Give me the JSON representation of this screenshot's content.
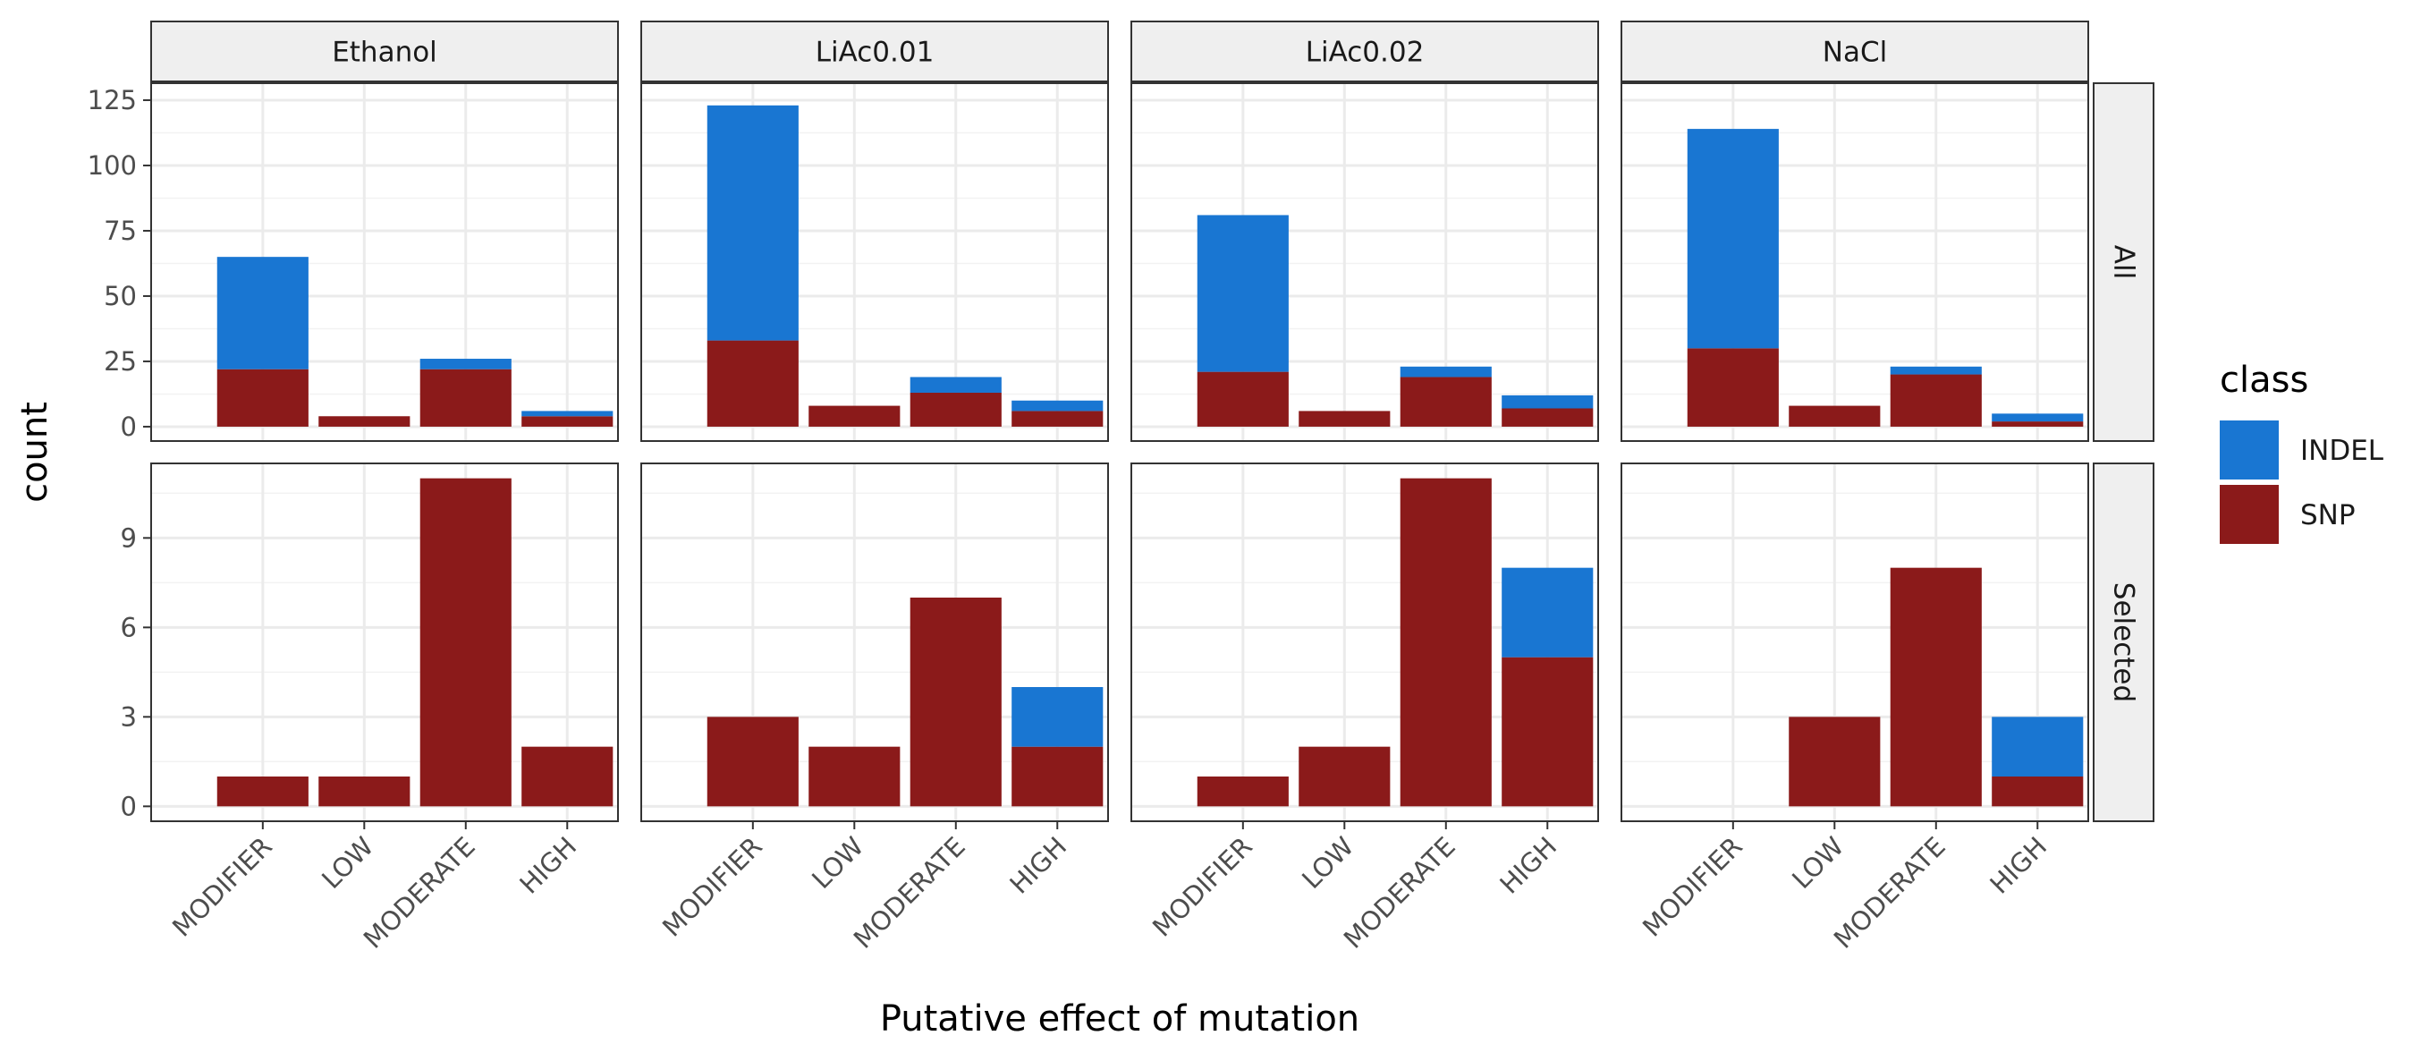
{
  "chart_data": {
    "type": "bar",
    "stacked": true,
    "faceted": true,
    "column_facets": [
      "Ethanol",
      "LiAc0.01",
      "LiAc0.02",
      "NaCl"
    ],
    "row_facets": [
      "All",
      "Selected"
    ],
    "categories": [
      "MODIFIER",
      "LOW",
      "MODERATE",
      "HIGH"
    ],
    "xlabel": "Putative effect of mutation",
    "ylabel": "count",
    "legend": {
      "title": "class",
      "position": "right",
      "entries": [
        {
          "name": "INDEL",
          "color": "#1976D2"
        },
        {
          "name": "SNP",
          "color": "#8B1A1A"
        }
      ]
    },
    "rows": [
      {
        "ylim": [
          -5.5,
          131.5
        ],
        "yticks": [
          0,
          25,
          50,
          75,
          100,
          125
        ],
        "panels": [
          {
            "SNP": [
              22,
              4,
              22,
              4
            ],
            "INDEL": [
              43,
              0,
              4,
              2
            ]
          },
          {
            "SNP": [
              33,
              8,
              13,
              6
            ],
            "INDEL": [
              90,
              0,
              6,
              4
            ]
          },
          {
            "SNP": [
              21,
              6,
              19,
              7
            ],
            "INDEL": [
              60,
              0,
              4,
              5
            ]
          },
          {
            "SNP": [
              30,
              8,
              20,
              2
            ],
            "INDEL": [
              84,
              0,
              3,
              3
            ]
          }
        ]
      },
      {
        "ylim": [
          -0.5,
          11.5
        ],
        "yticks": [
          0,
          3,
          6,
          9
        ],
        "panels": [
          {
            "SNP": [
              1,
              1,
              11,
              2
            ],
            "INDEL": [
              0,
              0,
              0,
              0
            ]
          },
          {
            "SNP": [
              3,
              2,
              7,
              2
            ],
            "INDEL": [
              0,
              0,
              0,
              2
            ]
          },
          {
            "SNP": [
              1,
              2,
              11,
              5
            ],
            "INDEL": [
              0,
              0,
              0,
              3
            ]
          },
          {
            "SNP": [
              0,
              3,
              8,
              1
            ],
            "INDEL": [
              0,
              0,
              0,
              2
            ]
          }
        ]
      }
    ],
    "grid": true
  }
}
